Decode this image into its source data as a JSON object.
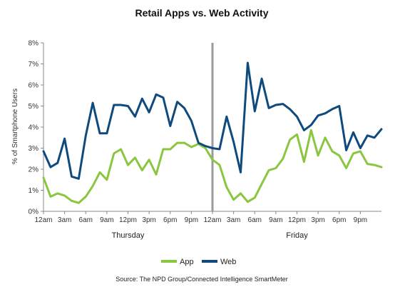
{
  "chart_data": {
    "type": "line",
    "title": "Retail Apps vs. Web Activity",
    "ylabel": "% of Smartphone Users",
    "xlabel": "",
    "ylim": [
      0,
      8
    ],
    "y_ticks": [
      "0%",
      "1%",
      "2%",
      "3%",
      "4%",
      "5%",
      "6%",
      "7%",
      "8%"
    ],
    "x_tick_labels": [
      "12am",
      "3am",
      "6am",
      "9am",
      "12pm",
      "3pm",
      "6pm",
      "9pm",
      "12am",
      "3am",
      "6am",
      "9am",
      "12pm",
      "3pm",
      "6pm",
      "9pm"
    ],
    "day_labels": [
      "Thursday",
      "Friday"
    ],
    "x_unit": "hour",
    "points_per_day": 24,
    "grid": false,
    "legend_position": "bottom",
    "source": "Source: The NPD Group/Connected Intelligence SmartMeter",
    "series": [
      {
        "name": "App",
        "color": "#8ac63f",
        "values": [
          1.6,
          0.7,
          0.85,
          0.75,
          0.5,
          0.4,
          0.7,
          1.2,
          1.85,
          1.5,
          2.75,
          2.95,
          2.2,
          2.55,
          1.95,
          2.45,
          1.75,
          2.95,
          2.95,
          3.25,
          3.25,
          3.05,
          3.2,
          3.0,
          2.45,
          2.2,
          1.15,
          0.55,
          0.85,
          0.45,
          0.65,
          1.3,
          1.95,
          2.05,
          2.5,
          3.4,
          3.65,
          2.35,
          3.85,
          2.65,
          3.5,
          2.85,
          2.65,
          2.05,
          2.75,
          2.85,
          2.25,
          2.2,
          2.1
        ]
      },
      {
        "name": "Web",
        "color": "#0e4a7d",
        "values": [
          2.85,
          2.1,
          2.3,
          3.45,
          1.65,
          1.55,
          3.6,
          5.15,
          3.7,
          3.7,
          5.05,
          5.05,
          5.0,
          4.5,
          5.35,
          4.7,
          5.55,
          5.4,
          4.05,
          5.2,
          4.9,
          4.3,
          3.25,
          3.1,
          3.0,
          2.95,
          4.5,
          3.3,
          1.85,
          7.05,
          4.75,
          6.3,
          4.9,
          5.05,
          5.1,
          4.85,
          4.5,
          3.85,
          4.1,
          4.55,
          4.65,
          4.85,
          5.0,
          2.9,
          3.75,
          3.0,
          3.6,
          3.5,
          3.9
        ]
      }
    ]
  }
}
